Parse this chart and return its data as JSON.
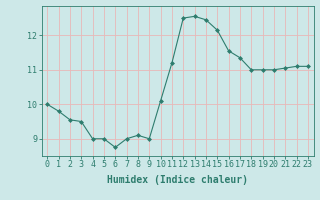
{
  "x": [
    0,
    1,
    2,
    3,
    4,
    5,
    6,
    7,
    8,
    9,
    10,
    11,
    12,
    13,
    14,
    15,
    16,
    17,
    18,
    19,
    20,
    21,
    22,
    23
  ],
  "y": [
    10.0,
    9.8,
    9.55,
    9.5,
    9.0,
    9.0,
    8.75,
    9.0,
    9.1,
    9.0,
    10.1,
    11.2,
    12.5,
    12.55,
    12.45,
    12.15,
    11.55,
    11.35,
    11.0,
    11.0,
    11.0,
    11.05,
    11.1,
    11.1
  ],
  "line_color": "#2e7d6e",
  "marker": "D",
  "marker_size": 2.0,
  "bg_color": "#cde8e8",
  "grid_color": "#e8b8b8",
  "axis_color": "#2e7d6e",
  "xlabel": "Humidex (Indice chaleur)",
  "xlabel_fontsize": 7,
  "tick_fontsize": 6,
  "xlim": [
    -0.5,
    23.5
  ],
  "ylim": [
    8.5,
    12.85
  ],
  "yticks": [
    9,
    10,
    11,
    12
  ],
  "xticks": [
    0,
    1,
    2,
    3,
    4,
    5,
    6,
    7,
    8,
    9,
    10,
    11,
    12,
    13,
    14,
    15,
    16,
    17,
    18,
    19,
    20,
    21,
    22,
    23
  ]
}
